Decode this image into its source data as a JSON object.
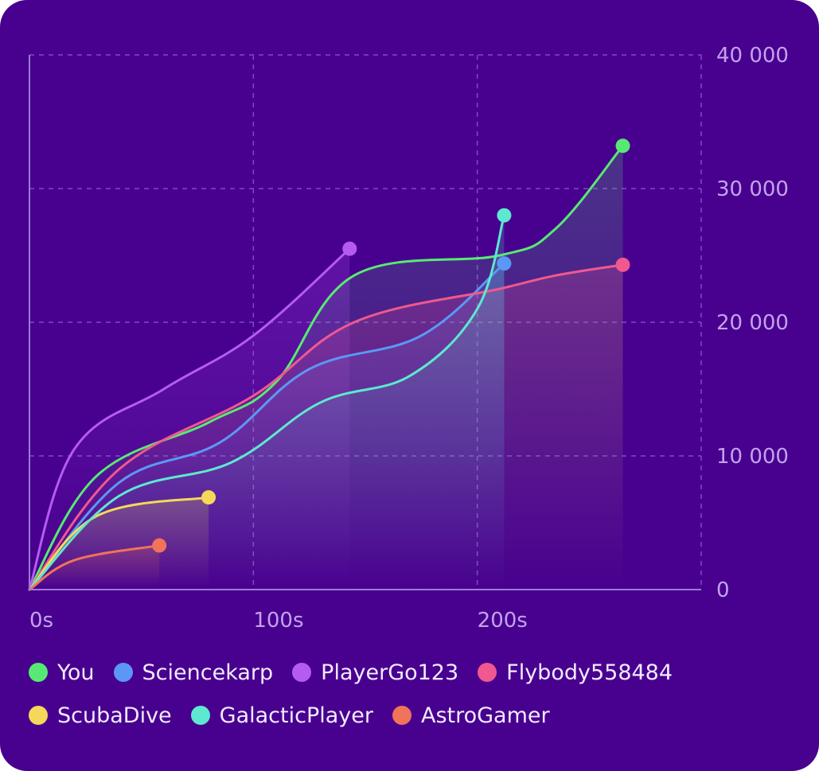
{
  "chart_data": {
    "type": "line",
    "title": "",
    "xlabel": "",
    "ylabel": "",
    "xlim": [
      0,
      300
    ],
    "ylim": [
      0,
      40000
    ],
    "x_ticks": [
      0,
      100,
      200
    ],
    "x_tick_labels": [
      "0s",
      "100s",
      "200s"
    ],
    "y_ticks": [
      0,
      10000,
      20000,
      30000,
      40000
    ],
    "y_tick_labels": [
      "0",
      "10 000",
      "20 000",
      "30 000",
      "40 000"
    ],
    "y_axis_side": "right",
    "grid": true,
    "legend_position": "bottom",
    "series": [
      {
        "name": "You",
        "color": "#57ea72",
        "x": [
          0,
          30,
          80,
          110,
          145,
          210,
          235,
          265
        ],
        "y": [
          0,
          8500,
          12500,
          15500,
          23500,
          25000,
          27000,
          33200
        ]
      },
      {
        "name": "Sciencekarp",
        "color": "#5b98f5",
        "x": [
          0,
          40,
          85,
          125,
          175,
          212
        ],
        "y": [
          0,
          8000,
          11000,
          16500,
          19000,
          24400
        ]
      },
      {
        "name": "PlayerGo123",
        "color": "#b65bf2",
        "x": [
          0,
          20,
          60,
          100,
          143
        ],
        "y": [
          0,
          10500,
          15000,
          19000,
          25500
        ]
      },
      {
        "name": "Flybody558484",
        "color": "#f0588f",
        "x": [
          0,
          40,
          100,
          145,
          210,
          235,
          265
        ],
        "y": [
          0,
          9000,
          14500,
          20000,
          22500,
          23500,
          24300
        ]
      },
      {
        "name": "ScubaDive",
        "color": "#f5d85a",
        "x": [
          0,
          30,
          80
        ],
        "y": [
          0,
          5500,
          6900
        ]
      },
      {
        "name": "GalacticPlayer",
        "color": "#5ee8cf",
        "x": [
          0,
          40,
          90,
          130,
          170,
          200,
          212
        ],
        "y": [
          0,
          7000,
          9500,
          14000,
          16000,
          21000,
          28000
        ]
      },
      {
        "name": "AstroGamer",
        "color": "#f0735a",
        "x": [
          0,
          20,
          58
        ],
        "y": [
          0,
          2200,
          3300
        ]
      }
    ],
    "colors": {
      "background": "#48008f",
      "grid": "#7d4bc4",
      "axis": "#9c7bd6",
      "tick_label": "#c3a2ec"
    }
  }
}
